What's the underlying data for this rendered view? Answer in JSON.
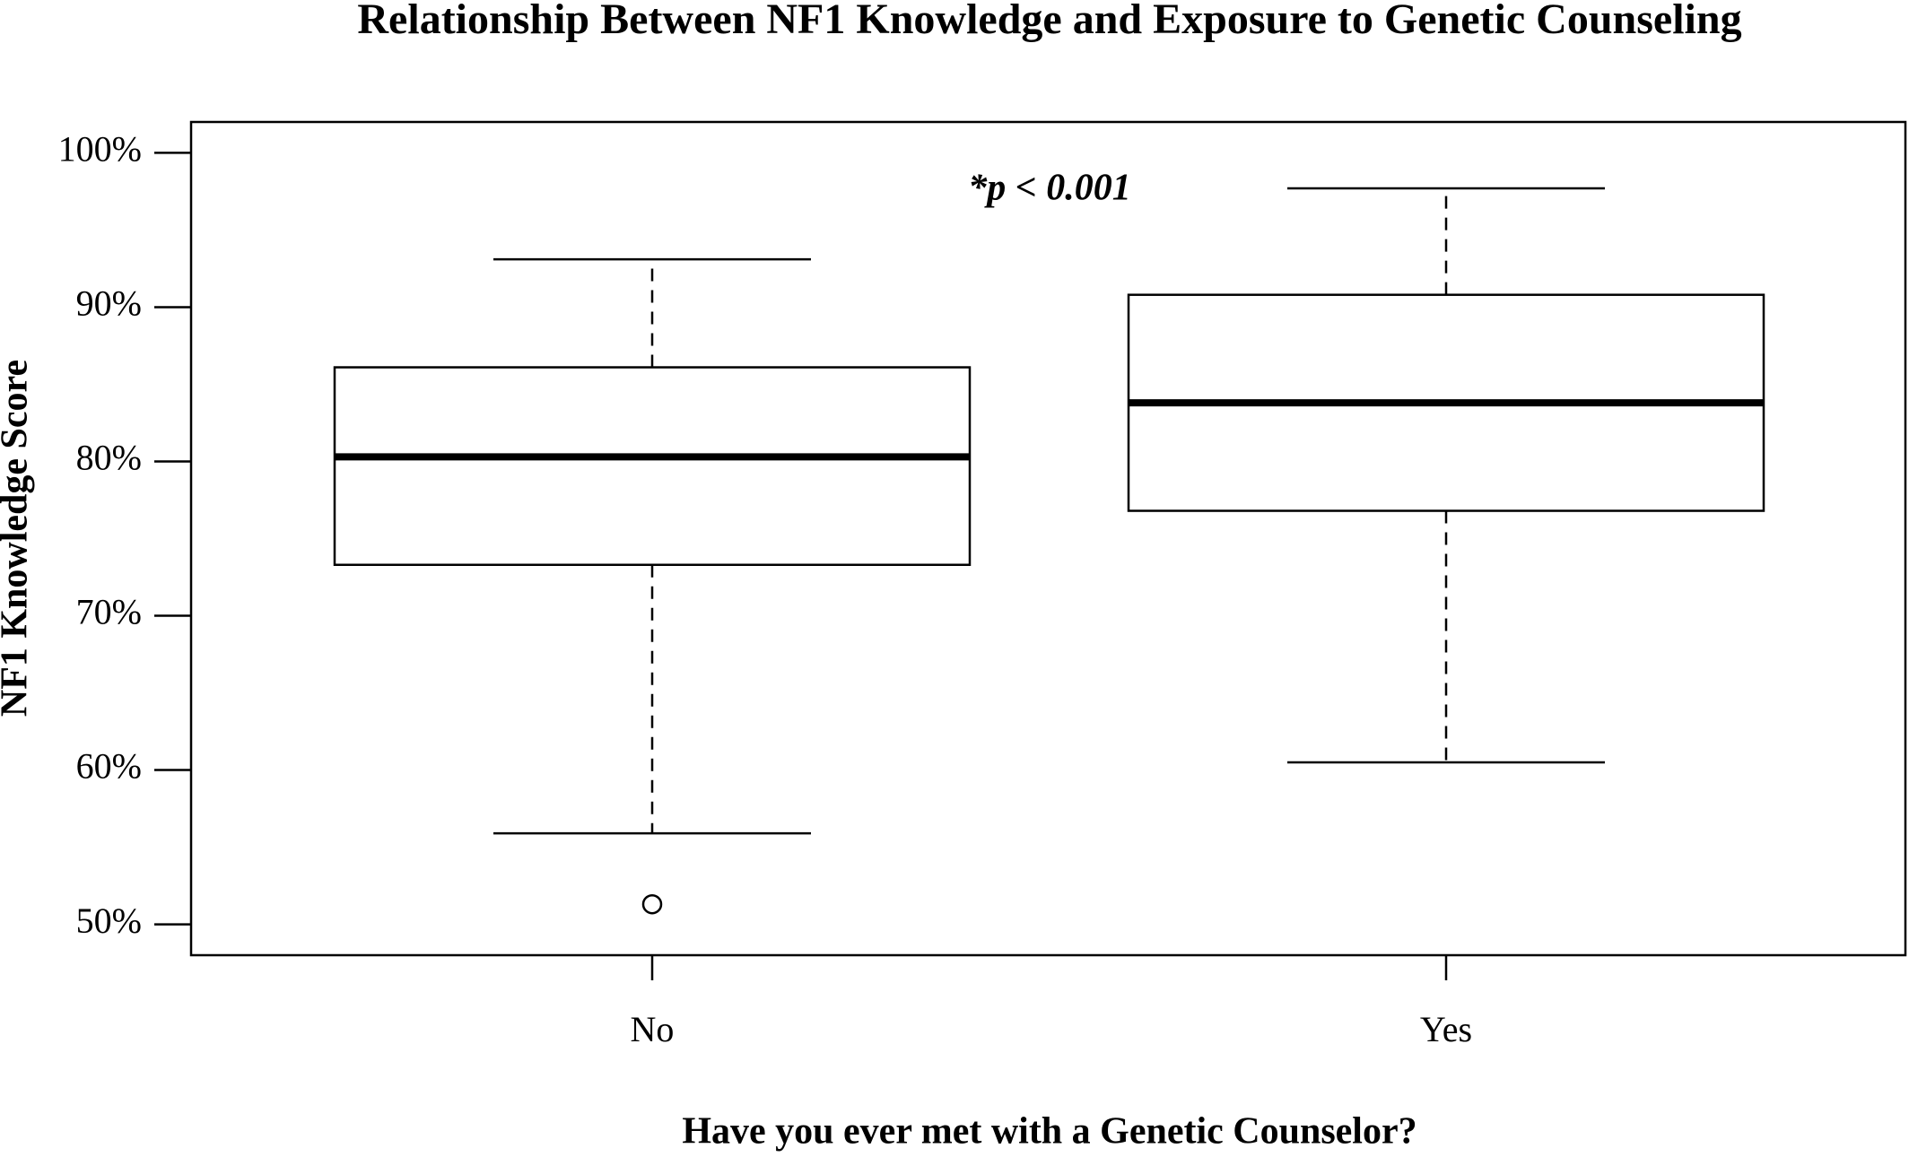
{
  "chart_data": {
    "type": "box",
    "title": "Relationship Between NF1 Knowledge and Exposure to Genetic Counseling",
    "x_label": "Have you ever met with a Genetic Counselor?",
    "y_label": "NF1 Knowledge Score",
    "annotation": "*p < 0.001",
    "categories": [
      "No",
      "Yes"
    ],
    "boxes": [
      {
        "whislo": 55.9,
        "q1": 73.3,
        "med": 80.3,
        "q3": 86.1,
        "whishi": 93.1,
        "fliers": [
          51.3
        ]
      },
      {
        "whislo": 60.5,
        "q1": 76.8,
        "med": 83.8,
        "q3": 90.8,
        "whishi": 97.7,
        "fliers": []
      }
    ],
    "color": "#000000",
    "ylim": [
      48,
      102
    ],
    "yticks": [
      {
        "value": 50,
        "label": "50%"
      },
      {
        "value": 60,
        "label": "60%"
      },
      {
        "value": 70,
        "label": "70%"
      },
      {
        "value": 80,
        "label": "80%"
      },
      {
        "value": 90,
        "label": "90%"
      },
      {
        "value": 100,
        "label": "100%"
      }
    ]
  }
}
